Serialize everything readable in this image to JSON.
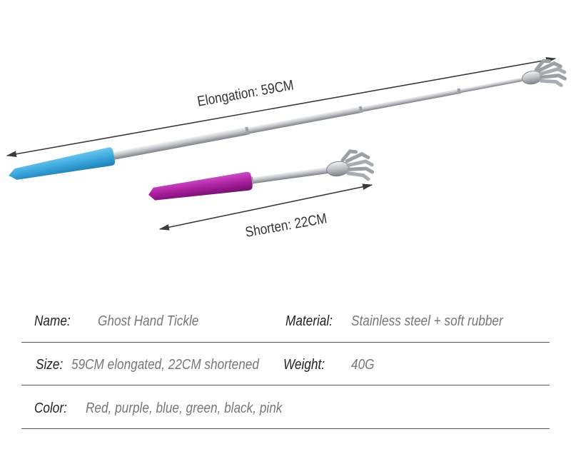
{
  "figure": {
    "elongation_label": "Elongation: 59CM",
    "shorten_label": "Shorten: 22CM",
    "colors": {
      "blue_handle": "#3aa6dc",
      "purple_handle": "#a91f9e",
      "steel": "#c9ccd0",
      "arrow": "#3a3a3a"
    }
  },
  "specs": {
    "name_label": "Name:",
    "name_value": "Ghost Hand Tickle",
    "material_label": "Material:",
    "material_value": "Stainless steel + soft rubber",
    "size_label": "Size:",
    "size_value": "59CM elongated, 22CM shortened",
    "weight_label": "Weight:",
    "weight_value": "40G",
    "color_label": "Color:",
    "color_value": "Red, purple, blue, green, black, pink"
  }
}
